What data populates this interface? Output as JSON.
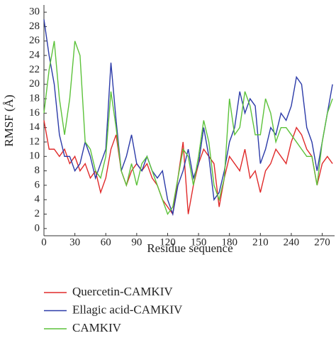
{
  "chart_data": {
    "type": "line",
    "xlabel": "Residue sequence",
    "ylabel": "RMSF (Å)",
    "x": [
      0,
      5,
      10,
      15,
      20,
      25,
      30,
      35,
      40,
      45,
      50,
      55,
      60,
      65,
      70,
      75,
      80,
      85,
      90,
      95,
      100,
      105,
      110,
      115,
      120,
      125,
      130,
      135,
      140,
      145,
      150,
      155,
      160,
      165,
      170,
      175,
      180,
      185,
      190,
      195,
      200,
      205,
      210,
      215,
      220,
      225,
      230,
      235,
      240,
      245,
      250,
      255,
      260,
      265,
      270,
      275,
      280
    ],
    "series": [
      {
        "name": "Quercetin-CAMKIV",
        "color": "#e02a2a",
        "values": [
          15,
          11,
          11,
          10,
          11,
          9,
          10,
          8,
          9,
          7,
          8,
          5,
          7,
          11,
          13,
          8,
          6,
          8,
          9,
          8,
          9,
          7,
          6,
          4,
          3,
          2,
          7,
          12,
          2,
          6,
          9,
          11,
          10,
          9,
          3,
          7,
          10,
          9,
          8,
          11,
          7,
          8,
          5,
          8,
          9,
          11,
          10,
          9,
          12,
          14,
          13,
          11,
          10,
          6,
          9,
          10,
          9
        ]
      },
      {
        "name": "Ellagic acid-CAMKIV",
        "color": "#2b3aa8",
        "values": [
          29,
          24,
          20,
          13,
          10,
          10,
          8,
          9,
          12,
          10,
          7,
          9,
          11,
          23,
          15,
          8,
          10,
          13,
          9,
          8,
          10,
          8,
          7,
          8,
          4,
          2,
          6,
          8,
          11,
          7,
          9,
          14,
          10,
          4,
          5,
          8,
          12,
          14,
          19,
          16,
          18,
          17,
          9,
          11,
          14,
          13,
          16,
          15,
          17,
          21,
          20,
          14,
          12,
          8,
          12,
          16,
          20
        ]
      },
      {
        "name": "CAMKIV",
        "color": "#5cc23a",
        "values": [
          16,
          22,
          26,
          18,
          13,
          18,
          26,
          24,
          12,
          11,
          8,
          7,
          10,
          19,
          14,
          8,
          6,
          9,
          6,
          9,
          10,
          8,
          6,
          4,
          2,
          3,
          7,
          11,
          10,
          6,
          10,
          15,
          12,
          6,
          4,
          7,
          18,
          13,
          14,
          19,
          17,
          13,
          13,
          18,
          16,
          12,
          14,
          14,
          13,
          12,
          11,
          10,
          10,
          6,
          12,
          16,
          18
        ]
      }
    ],
    "xlim": [
      0,
      282
    ],
    "ylim": [
      -1,
      31
    ],
    "xticks": [
      0,
      30,
      60,
      90,
      120,
      150,
      180,
      210,
      240,
      270
    ],
    "yticks": [
      0,
      2,
      4,
      6,
      8,
      10,
      12,
      14,
      16,
      18,
      20,
      22,
      24,
      26,
      28,
      30
    ]
  }
}
